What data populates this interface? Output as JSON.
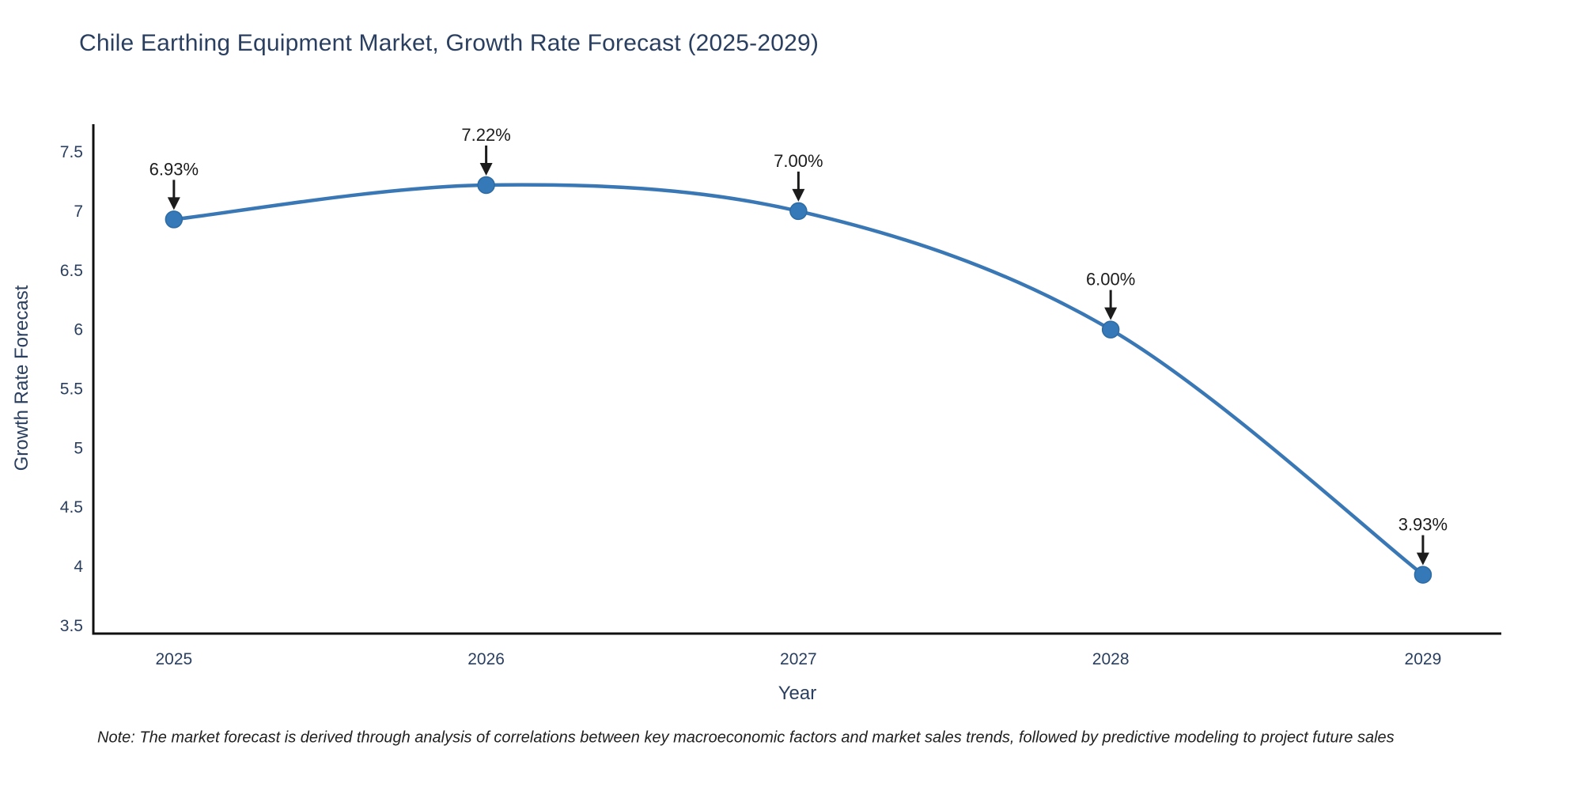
{
  "note": {
    "text": "Note: The market forecast is derived through analysis of correlations between key macroeconomic factors and market sales trends, followed by predictive modeling to project future sales"
  },
  "colors": {
    "background": "#ffffff",
    "line": "#3a78b5",
    "marker_fill": "#3579b8",
    "marker_edge": "#2d6ba3",
    "axis_line": "#101010",
    "axis_text": "#2a3f5f",
    "annotation_text": "#1c1c1c",
    "arrow": "#1c1c1c"
  },
  "chart_data": {
    "type": "line",
    "title": "Chile Earthing Equipment Market, Growth Rate Forecast (2025-2029)",
    "xlabel": "Year",
    "ylabel": "Growth Rate Forecast",
    "x": [
      2025,
      2026,
      2027,
      2028,
      2029
    ],
    "values": [
      6.93,
      7.22,
      7.0,
      6.0,
      3.93
    ],
    "annotations": [
      "6.93%",
      "7.22%",
      "7.00%",
      "6.00%",
      "3.93%"
    ],
    "xticks": [
      2025,
      2026,
      2027,
      2028,
      2029
    ],
    "yticks": [
      3.5,
      4,
      4.5,
      5,
      5.5,
      6,
      6.5,
      7,
      7.5
    ],
    "xlim": [
      2024.742,
      2029.251
    ],
    "ylim": [
      3.433,
      7.734
    ],
    "grid": false,
    "legend": "none",
    "line_shape": "spline",
    "marker": "circle"
  }
}
